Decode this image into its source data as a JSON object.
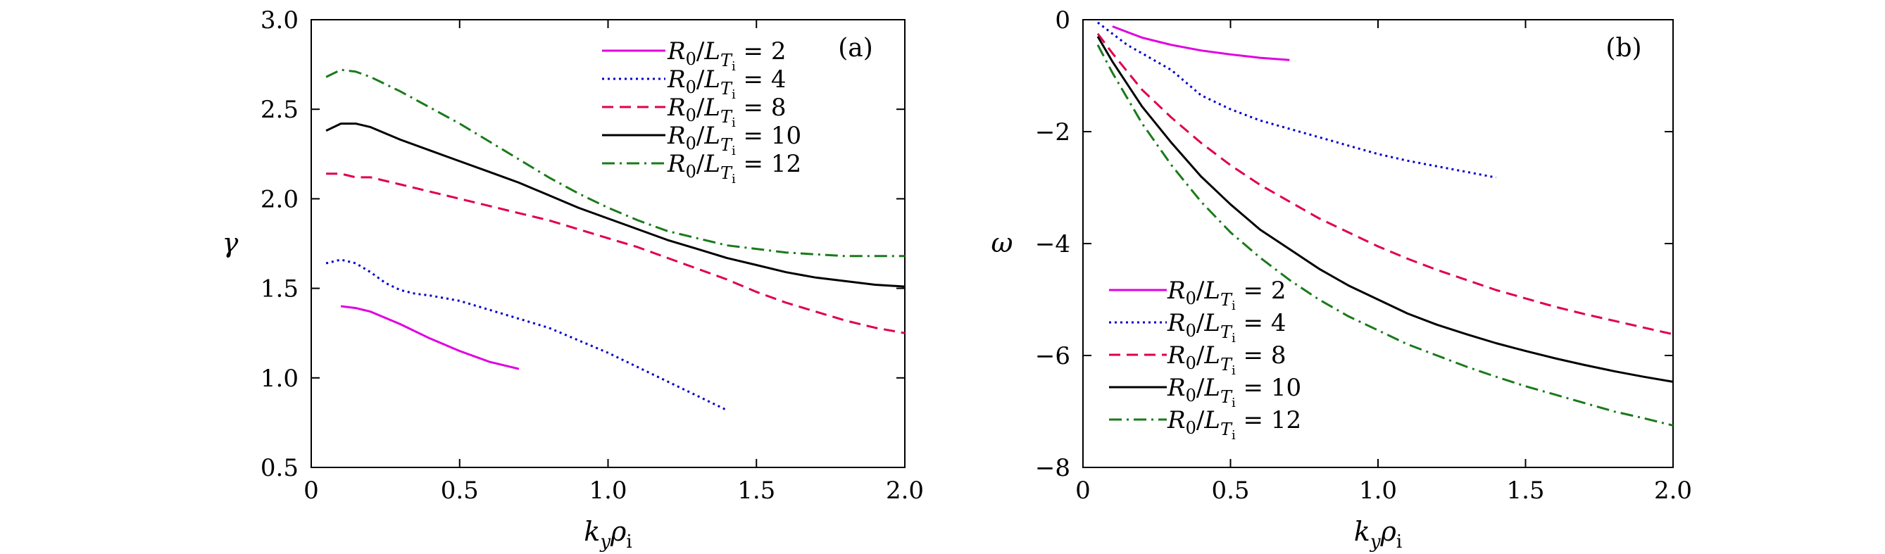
{
  "chart_data": [
    {
      "type": "line",
      "panel_label": "(a)",
      "xlabel": "k_y ρ_i",
      "ylabel": "γ",
      "xlim": [
        0,
        2.0
      ],
      "ylim": [
        0.5,
        3.0
      ],
      "xticks": [
        "0",
        "0.5",
        "1.0",
        "1.5",
        "2.0"
      ],
      "yticks": [
        "0.5",
        "1.0",
        "1.5",
        "2.0",
        "2.5",
        "3.0"
      ],
      "legend_placement": "top-right",
      "series": [
        {
          "name": "R0/LTi = 2",
          "value_label": "2",
          "color": "#e000e0",
          "dash": "solid",
          "x": [
            0.1,
            0.15,
            0.2,
            0.3,
            0.4,
            0.5,
            0.6,
            0.7
          ],
          "y": [
            1.4,
            1.39,
            1.37,
            1.3,
            1.22,
            1.15,
            1.09,
            1.05
          ]
        },
        {
          "name": "R0/LTi = 4",
          "value_label": "4",
          "color": "#0000cc",
          "dash": "dot",
          "x": [
            0.05,
            0.1,
            0.15,
            0.2,
            0.25,
            0.3,
            0.35,
            0.4,
            0.5,
            0.6,
            0.7,
            0.8,
            0.9,
            1.0,
            1.1,
            1.2,
            1.3,
            1.4
          ],
          "y": [
            1.64,
            1.66,
            1.64,
            1.59,
            1.53,
            1.49,
            1.47,
            1.46,
            1.43,
            1.38,
            1.33,
            1.28,
            1.21,
            1.14,
            1.06,
            0.98,
            0.9,
            0.82
          ]
        },
        {
          "name": "R0/LTi = 8",
          "value_label": "8",
          "color": "#e0004a",
          "dash": "dash",
          "x": [
            0.05,
            0.1,
            0.15,
            0.2,
            0.3,
            0.4,
            0.5,
            0.6,
            0.7,
            0.8,
            0.9,
            1.0,
            1.1,
            1.2,
            1.3,
            1.4,
            1.5,
            1.6,
            1.7,
            1.8,
            1.9,
            2.0
          ],
          "y": [
            2.14,
            2.14,
            2.12,
            2.12,
            2.08,
            2.04,
            2.0,
            1.96,
            1.92,
            1.88,
            1.83,
            1.78,
            1.73,
            1.67,
            1.61,
            1.55,
            1.48,
            1.42,
            1.37,
            1.32,
            1.28,
            1.25
          ]
        },
        {
          "name": "R0/LTi = 10",
          "value_label": "10",
          "color": "#000000",
          "dash": "solid",
          "x": [
            0.05,
            0.1,
            0.15,
            0.2,
            0.3,
            0.4,
            0.5,
            0.6,
            0.7,
            0.8,
            0.9,
            1.0,
            1.1,
            1.2,
            1.3,
            1.4,
            1.5,
            1.6,
            1.7,
            1.8,
            1.9,
            2.0
          ],
          "y": [
            2.38,
            2.42,
            2.42,
            2.4,
            2.33,
            2.27,
            2.21,
            2.15,
            2.09,
            2.02,
            1.95,
            1.89,
            1.83,
            1.77,
            1.72,
            1.67,
            1.63,
            1.59,
            1.56,
            1.54,
            1.52,
            1.51
          ]
        },
        {
          "name": "R0/LTi = 12",
          "value_label": "12",
          "color": "#1a7a1a",
          "dash": "dashdot",
          "x": [
            0.05,
            0.1,
            0.15,
            0.2,
            0.3,
            0.4,
            0.5,
            0.6,
            0.7,
            0.8,
            0.9,
            1.0,
            1.1,
            1.2,
            1.3,
            1.4,
            1.5,
            1.6,
            1.7,
            1.8,
            1.9,
            2.0
          ],
          "y": [
            2.68,
            2.72,
            2.71,
            2.68,
            2.6,
            2.51,
            2.42,
            2.32,
            2.22,
            2.12,
            2.03,
            1.95,
            1.88,
            1.82,
            1.78,
            1.74,
            1.72,
            1.7,
            1.69,
            1.68,
            1.68,
            1.68
          ]
        }
      ]
    },
    {
      "type": "line",
      "panel_label": "(b)",
      "xlabel": "k_y ρ_i",
      "ylabel": "ω",
      "xlim": [
        0,
        2.0
      ],
      "ylim": [
        -8,
        0
      ],
      "xticks": [
        "0",
        "0.5",
        "1.0",
        "1.5",
        "2.0"
      ],
      "yticks": [
        "−8",
        "−6",
        "−4",
        "−2",
        "0"
      ],
      "legend_placement": "bottom-left",
      "series": [
        {
          "name": "R0/LTi = 2",
          "value_label": "2",
          "color": "#e000e0",
          "dash": "solid",
          "x": [
            0.1,
            0.15,
            0.2,
            0.3,
            0.4,
            0.5,
            0.6,
            0.7
          ],
          "y": [
            -0.12,
            -0.22,
            -0.32,
            -0.45,
            -0.55,
            -0.62,
            -0.68,
            -0.72
          ]
        },
        {
          "name": "R0/LTi = 4",
          "value_label": "4",
          "color": "#0000cc",
          "dash": "dot",
          "x": [
            0.05,
            0.1,
            0.15,
            0.2,
            0.3,
            0.4,
            0.5,
            0.6,
            0.7,
            0.8,
            0.9,
            1.0,
            1.1,
            1.2,
            1.3,
            1.4
          ],
          "y": [
            -0.05,
            -0.25,
            -0.45,
            -0.6,
            -0.9,
            -1.35,
            -1.6,
            -1.8,
            -1.95,
            -2.1,
            -2.25,
            -2.4,
            -2.52,
            -2.62,
            -2.72,
            -2.82
          ]
        },
        {
          "name": "R0/LTi = 8",
          "value_label": "8",
          "color": "#e0004a",
          "dash": "dash",
          "x": [
            0.05,
            0.1,
            0.2,
            0.3,
            0.4,
            0.5,
            0.6,
            0.7,
            0.8,
            0.9,
            1.0,
            1.1,
            1.2,
            1.3,
            1.4,
            1.5,
            1.6,
            1.7,
            1.8,
            1.9,
            2.0
          ],
          "y": [
            -0.25,
            -0.6,
            -1.25,
            -1.75,
            -2.2,
            -2.6,
            -2.95,
            -3.25,
            -3.55,
            -3.8,
            -4.05,
            -4.27,
            -4.47,
            -4.65,
            -4.83,
            -4.98,
            -5.13,
            -5.26,
            -5.38,
            -5.5,
            -5.62
          ]
        },
        {
          "name": "R0/LTi = 10",
          "value_label": "10",
          "color": "#000000",
          "dash": "solid",
          "x": [
            0.05,
            0.1,
            0.2,
            0.3,
            0.4,
            0.5,
            0.6,
            0.7,
            0.8,
            0.9,
            1.0,
            1.1,
            1.2,
            1.3,
            1.4,
            1.5,
            1.6,
            1.7,
            1.8,
            1.9,
            2.0
          ],
          "y": [
            -0.3,
            -0.75,
            -1.55,
            -2.2,
            -2.8,
            -3.3,
            -3.75,
            -4.1,
            -4.45,
            -4.75,
            -5.0,
            -5.25,
            -5.45,
            -5.62,
            -5.78,
            -5.92,
            -6.05,
            -6.17,
            -6.28,
            -6.38,
            -6.47
          ]
        },
        {
          "name": "R0/LTi = 12",
          "value_label": "12",
          "color": "#1a7a1a",
          "dash": "dashdot",
          "x": [
            0.05,
            0.1,
            0.2,
            0.3,
            0.4,
            0.5,
            0.6,
            0.7,
            0.8,
            0.9,
            1.0,
            1.1,
            1.2,
            1.3,
            1.4,
            1.5,
            1.6,
            1.7,
            1.8,
            1.9,
            2.0
          ],
          "y": [
            -0.45,
            -0.95,
            -1.85,
            -2.6,
            -3.25,
            -3.8,
            -4.25,
            -4.65,
            -5.0,
            -5.3,
            -5.55,
            -5.8,
            -6.0,
            -6.2,
            -6.38,
            -6.55,
            -6.7,
            -6.85,
            -7.0,
            -7.12,
            -7.25
          ]
        }
      ]
    }
  ]
}
